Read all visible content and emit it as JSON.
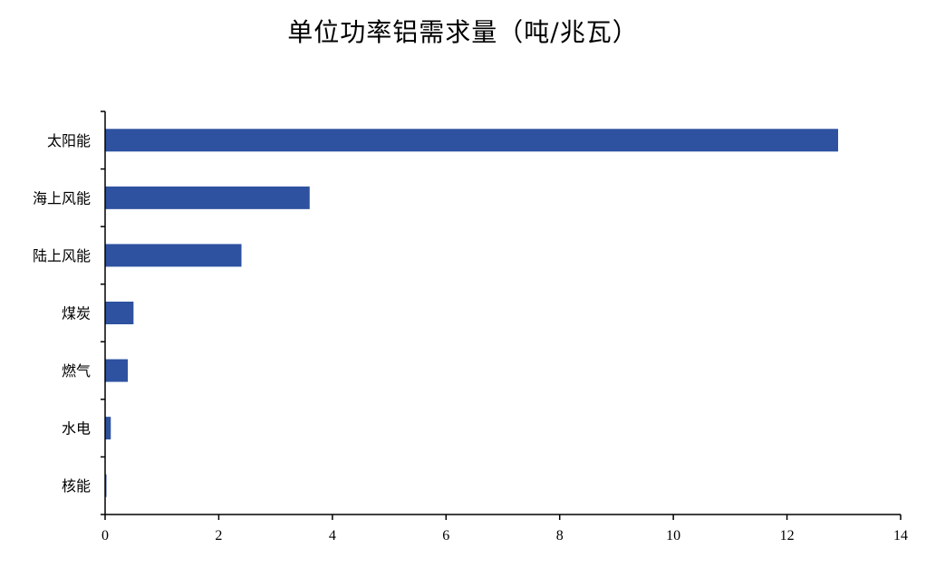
{
  "chart_data": {
    "type": "bar",
    "orientation": "horizontal",
    "title": "单位功率铝需求量（吨/兆瓦）",
    "xlabel": "",
    "ylabel": "",
    "categories": [
      "太阳能",
      "海上风能",
      "陆上风能",
      "煤炭",
      "燃气",
      "水电",
      "核能"
    ],
    "values": [
      12.9,
      3.6,
      2.4,
      0.5,
      0.4,
      0.1,
      0.02
    ],
    "xlim": [
      0,
      14
    ],
    "xticks": [
      0,
      2,
      4,
      6,
      8,
      10,
      12,
      14
    ],
    "grid": false,
    "legend": "none",
    "bar_color": "#2E52A0",
    "axis_color": "#000000"
  }
}
